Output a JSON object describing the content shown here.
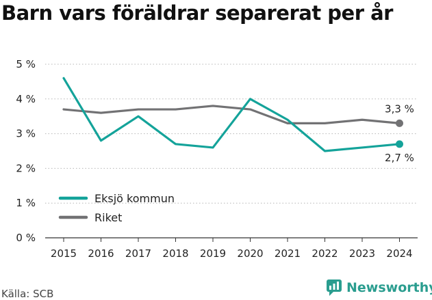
{
  "title": "Barn vars föräldrar separerat per år",
  "source": "Källa: SCB",
  "brand": {
    "name": "Newsworthy",
    "icon": "newsworthy-logo-icon",
    "color": "#2a9d8f"
  },
  "chart_data": {
    "type": "line",
    "title": "Barn vars föräldrar separerat per år",
    "x": [
      "2015",
      "2016",
      "2017",
      "2018",
      "2019",
      "2020",
      "2021",
      "2022",
      "2023",
      "2024"
    ],
    "ylim": [
      0,
      5
    ],
    "y_ticks": [
      0,
      1,
      2,
      3,
      4,
      5
    ],
    "y_tick_labels": [
      "0 %",
      "1 %",
      "2 %",
      "3 %",
      "4 %",
      "5 %"
    ],
    "grid": true,
    "legend": "bottom-left",
    "series": [
      {
        "name": "Eksjö kommun",
        "color": "#14a39a",
        "values": [
          4.6,
          2.8,
          3.5,
          2.7,
          2.6,
          4.0,
          3.4,
          2.5,
          2.6,
          2.7
        ],
        "end_label": "2,7 %"
      },
      {
        "name": "Riket",
        "color": "#727274",
        "values": [
          3.7,
          3.6,
          3.7,
          3.7,
          3.8,
          3.7,
          3.3,
          3.3,
          3.4,
          3.3
        ],
        "end_label": "3,3 %"
      }
    ]
  }
}
